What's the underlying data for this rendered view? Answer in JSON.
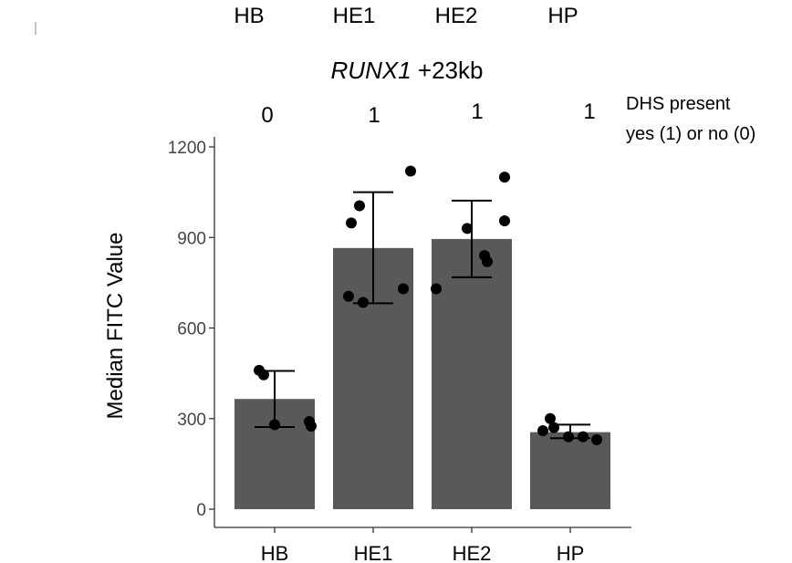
{
  "chart_data": {
    "type": "bar",
    "title": {
      "gene": "RUNX1",
      "suffix": " +23kb"
    },
    "top_labels": [
      "HB",
      "HE1",
      "HE2",
      "HP"
    ],
    "categories": [
      "HB",
      "HE1",
      "HE2",
      "HP"
    ],
    "values": [
      365,
      865,
      895,
      255
    ],
    "error_bars": [
      {
        "low": 272,
        "high": 458
      },
      {
        "low": 682,
        "high": 1050
      },
      {
        "low": 768,
        "high": 1022
      },
      {
        "low": 235,
        "high": 280
      }
    ],
    "points": [
      [
        460,
        445,
        280,
        290,
        275
      ],
      [
        1005,
        948,
        705,
        685,
        730,
        1120
      ],
      [
        930,
        955,
        1100,
        840,
        820,
        730
      ],
      [
        300,
        270,
        260,
        240,
        240,
        230
      ]
    ],
    "dhs_present": [
      "0",
      "1",
      "1",
      "1"
    ],
    "dhs_note": [
      "DHS present",
      "yes (1) or no (0)"
    ],
    "ylabel": "Median FITC Value",
    "xlabel": "",
    "ylim": [
      0,
      1200
    ],
    "yticks": [
      0,
      300,
      600,
      900,
      1200
    ],
    "colors": {
      "bar": "#595959",
      "point": "#000000",
      "axis": "#333333"
    }
  }
}
